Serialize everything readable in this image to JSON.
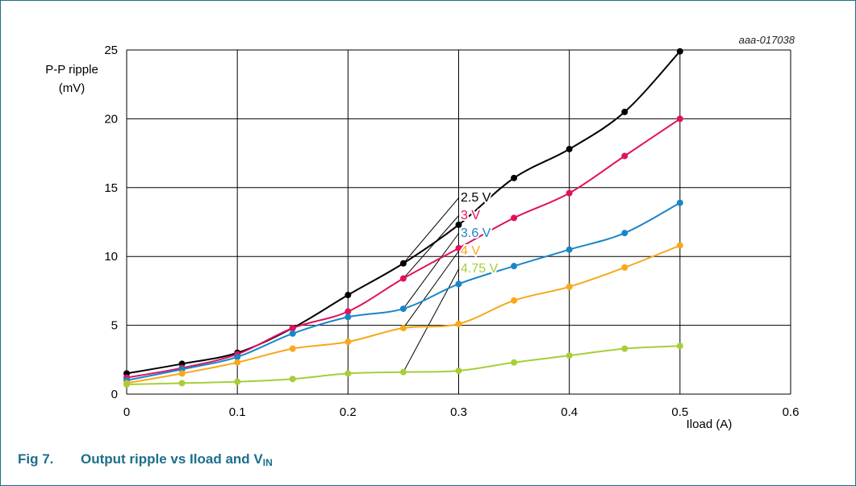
{
  "figure": {
    "ref_id": "aaa-017038",
    "caption_number": "Fig 7.",
    "caption_text": "Output ripple vs Iload and V",
    "caption_sub": "IN"
  },
  "colors": {
    "frame": "#1b6f8a",
    "caption": "#1b6f8a",
    "grid": "#000000"
  },
  "chart_data": {
    "type": "line",
    "ylabel_line1": "P-P ripple",
    "ylabel_line2": "(mV)",
    "xlabel": "Iload (A)",
    "xlim": [
      0,
      0.6
    ],
    "ylim": [
      0,
      25
    ],
    "xticks": [
      0,
      0.1,
      0.2,
      0.3,
      0.4,
      0.5,
      0.6
    ],
    "xtick_labels": [
      "0",
      "0.1",
      "0.2",
      "0.3",
      "0.4",
      "0.5",
      "0.6"
    ],
    "yticks": [
      0,
      5,
      10,
      15,
      20,
      25
    ],
    "ytick_labels": [
      "0",
      "5",
      "10",
      "15",
      "20",
      "25"
    ],
    "grid": true,
    "x": [
      0,
      0.05,
      0.1,
      0.15,
      0.2,
      0.25,
      0.3,
      0.35,
      0.4,
      0.45,
      0.5
    ],
    "series": [
      {
        "name": "2.5 V",
        "color": "#000000",
        "label_anchor_x": 0.25,
        "values": [
          1.5,
          2.2,
          3.0,
          4.8,
          7.2,
          9.5,
          12.3,
          15.7,
          17.8,
          20.5,
          24.9
        ]
      },
      {
        "name": "3 V",
        "color": "#e0115f",
        "label_anchor_x": 0.25,
        "values": [
          1.2,
          1.9,
          2.9,
          4.8,
          6.0,
          8.4,
          10.6,
          12.8,
          14.6,
          17.3,
          20.0
        ]
      },
      {
        "name": "3.6 V",
        "color": "#1a86c8",
        "label_anchor_x": 0.25,
        "values": [
          1.0,
          1.8,
          2.7,
          4.4,
          5.6,
          6.2,
          8.0,
          9.3,
          10.5,
          11.7,
          13.9
        ]
      },
      {
        "name": "4 V",
        "color": "#f7a81b",
        "label_anchor_x": 0.25,
        "values": [
          0.8,
          1.5,
          2.3,
          3.3,
          3.8,
          4.8,
          5.1,
          6.8,
          7.8,
          9.2,
          10.8
        ]
      },
      {
        "name": "4.75 V",
        "color": "#a6ce39",
        "label_anchor_x": 0.25,
        "values": [
          0.7,
          0.8,
          0.9,
          1.1,
          1.5,
          1.6,
          1.7,
          2.3,
          2.8,
          3.3,
          3.5
        ]
      }
    ]
  }
}
